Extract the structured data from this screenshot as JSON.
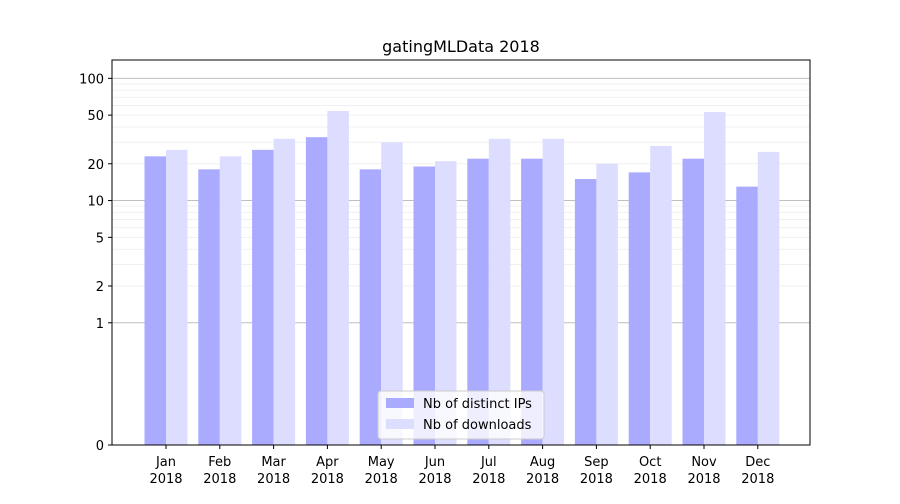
{
  "chart_data": {
    "type": "bar",
    "title": "gatingMLData 2018",
    "xlabel": "",
    "ylabel": "",
    "yscale": "symlog",
    "yticks": [
      0,
      1,
      2,
      5,
      10,
      20,
      50,
      100
    ],
    "ytick_labels": [
      "0",
      "1",
      "2",
      "5",
      "10",
      "20",
      "50",
      "100"
    ],
    "categories": [
      [
        "Jan",
        "2018"
      ],
      [
        "Feb",
        "2018"
      ],
      [
        "Mar",
        "2018"
      ],
      [
        "Apr",
        "2018"
      ],
      [
        "May",
        "2018"
      ],
      [
        "Jun",
        "2018"
      ],
      [
        "Jul",
        "2018"
      ],
      [
        "Aug",
        "2018"
      ],
      [
        "Sep",
        "2018"
      ],
      [
        "Oct",
        "2018"
      ],
      [
        "Nov",
        "2018"
      ],
      [
        "Dec",
        "2018"
      ]
    ],
    "series": [
      {
        "name": "Nb of distinct IPs",
        "color": "#aaaaff",
        "values": [
          23,
          18,
          26,
          33,
          18,
          19,
          22,
          22,
          15,
          17,
          22,
          13
        ]
      },
      {
        "name": "Nb of downloads",
        "color": "#ddddff",
        "values": [
          26,
          23,
          32,
          54,
          30,
          21,
          32,
          32,
          20,
          28,
          53,
          25
        ]
      }
    ],
    "legend_position": "lower-center",
    "grid": true
  }
}
